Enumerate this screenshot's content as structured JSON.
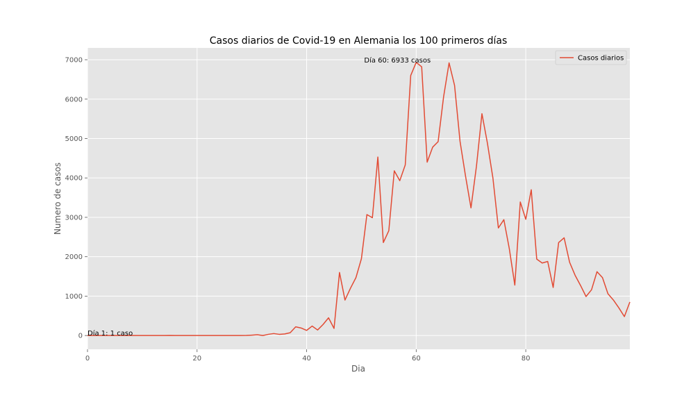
{
  "chart_data": {
    "type": "line",
    "title": "Casos diarios de Covid-19 en Alemania los 100 primeros días",
    "xlabel": "Dia",
    "ylabel": "Numero de casos",
    "xlim": [
      0,
      99
    ],
    "ylim": [
      -350,
      7300
    ],
    "xticks": [
      0,
      20,
      40,
      60,
      80
    ],
    "yticks": [
      0,
      1000,
      2000,
      3000,
      4000,
      5000,
      6000,
      7000
    ],
    "grid": true,
    "legend_position": "top-right",
    "line_color": "#E24A33",
    "background_color": "#E5E5E5",
    "series": [
      {
        "name": "Casos diarios",
        "x": [
          0,
          1,
          2,
          3,
          4,
          5,
          6,
          7,
          8,
          9,
          10,
          11,
          12,
          13,
          14,
          15,
          16,
          17,
          18,
          19,
          20,
          21,
          22,
          23,
          24,
          25,
          26,
          27,
          28,
          29,
          30,
          31,
          32,
          33,
          34,
          35,
          36,
          37,
          38,
          39,
          40,
          41,
          42,
          43,
          44,
          45,
          46,
          47,
          48,
          49,
          50,
          51,
          52,
          53,
          54,
          55,
          56,
          57,
          58,
          59,
          60,
          61,
          62,
          63,
          64,
          65,
          66,
          67,
          68,
          69,
          70,
          71,
          72,
          73,
          74,
          75,
          76,
          77,
          78,
          79,
          80,
          81,
          82,
          83,
          84,
          85,
          86,
          87,
          88,
          89,
          90,
          91,
          92,
          93,
          94,
          95,
          96,
          97,
          98,
          99
        ],
        "values": [
          1,
          0,
          0,
          0,
          0,
          0,
          0,
          0,
          0,
          0,
          0,
          0,
          0,
          0,
          0,
          2,
          0,
          0,
          0,
          0,
          0,
          0,
          0,
          0,
          0,
          0,
          0,
          0,
          0,
          2,
          10,
          20,
          0,
          30,
          50,
          30,
          40,
          70,
          220,
          190,
          130,
          240,
          140,
          280,
          450,
          180,
          1600,
          900,
          1200,
          1470,
          1950,
          3070,
          2990,
          4530,
          2360,
          2660,
          4180,
          3930,
          4330,
          6600,
          6933,
          6820,
          4400,
          4780,
          4920,
          6060,
          6920,
          6350,
          4930,
          4050,
          3240,
          4300,
          5630,
          4880,
          4000,
          2730,
          2940,
          2200,
          1280,
          3390,
          2950,
          3700,
          1940,
          1840,
          1880,
          1220,
          2360,
          2480,
          1860,
          1530,
          1270,
          990,
          1160,
          1620,
          1470,
          1060,
          900,
          700,
          480,
          850
        ]
      }
    ],
    "annotations": [
      {
        "text": "Día 1: 1 caso",
        "x": 0,
        "y": 1
      },
      {
        "text": "Día 60: 6933 casos",
        "x": 50.5,
        "y": 6933
      }
    ]
  }
}
